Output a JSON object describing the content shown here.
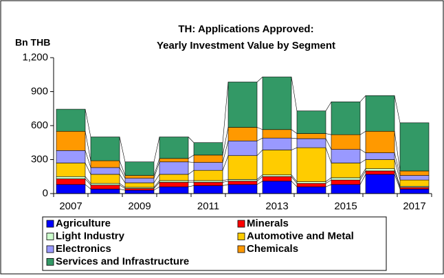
{
  "chart_data": {
    "type": "stacked_bar",
    "title": "TH: Applications Approved:",
    "subtitle": "Yearly Investment Value by Segment",
    "y_axis_label": "Bn THB",
    "categories": [
      "2007",
      null,
      "2009",
      null,
      "2011",
      null,
      "2013",
      null,
      "2015",
      null,
      "2017"
    ],
    "ylim": [
      0,
      1200
    ],
    "yticks": [
      0,
      300,
      600,
      900,
      {
        "value": 1200,
        "label": "1,200"
      }
    ],
    "series": [
      {
        "name": "Agriculture",
        "color": "#0000ff",
        "values": [
          80,
          40,
          30,
          60,
          70,
          80,
          110,
          60,
          80,
          170,
          40
        ]
      },
      {
        "name": "Minerals",
        "color": "#ff0000",
        "values": [
          50,
          35,
          15,
          40,
          30,
          30,
          40,
          30,
          40,
          30,
          15
        ]
      },
      {
        "name": "Light Industry",
        "color": "#ccffcc",
        "values": [
          20,
          15,
          10,
          15,
          15,
          15,
          15,
          15,
          20,
          20,
          10
        ]
      },
      {
        "name": "Automotive and Metal",
        "color": "#ffcc00",
        "values": [
          120,
          80,
          40,
          55,
          90,
          210,
          220,
          300,
          130,
          80,
          55
        ]
      },
      {
        "name": "Electronics",
        "color": "#9999ff",
        "values": [
          110,
          60,
          40,
          110,
          70,
          130,
          105,
          80,
          120,
          60,
          40
        ]
      },
      {
        "name": "Chemicals",
        "color": "#ff9900",
        "values": [
          170,
          60,
          25,
          30,
          65,
          120,
          75,
          45,
          130,
          190,
          40
        ]
      },
      {
        "name": "Services and Infrastructure",
        "color": "#339966",
        "values": [
          195,
          210,
          120,
          190,
          110,
          400,
          465,
          200,
          290,
          315,
          425
        ]
      }
    ]
  }
}
